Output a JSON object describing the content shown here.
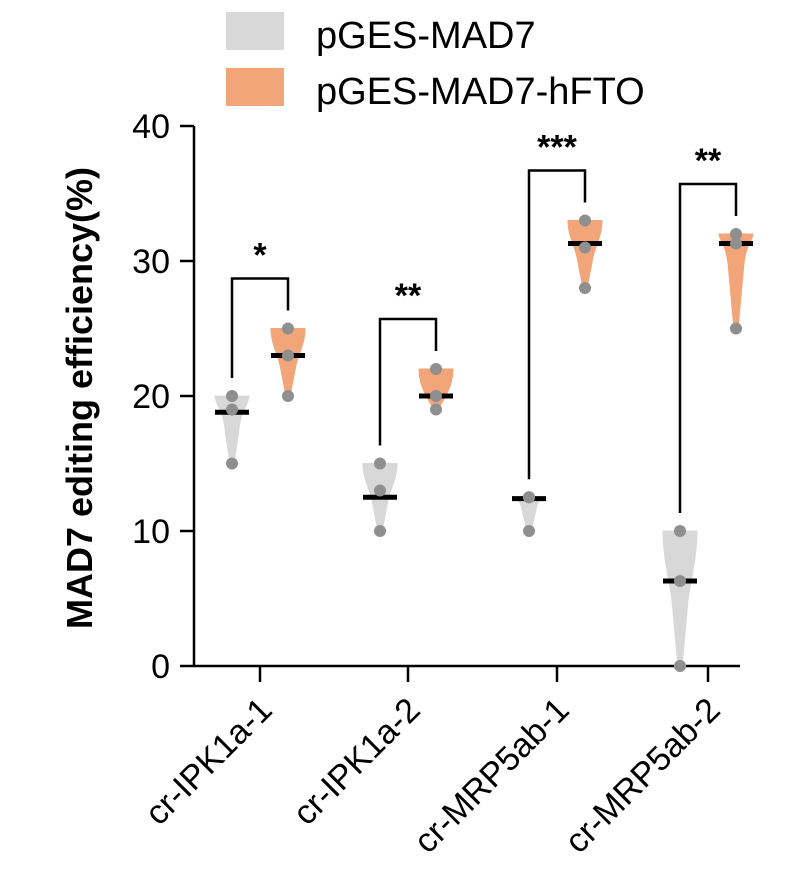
{
  "chart_data": {
    "type": "violin",
    "title": "",
    "xlabel": "",
    "ylabel": "MAD7 editing efficiency(%)",
    "ylim": [
      0,
      40
    ],
    "yticks": [
      0,
      10,
      20,
      30,
      40
    ],
    "categories": [
      "cr-IPK1a-1",
      "cr-IPK1a-2",
      "cr-MRP5ab-1",
      "cr-MRP5ab-2"
    ],
    "legend_position": "top",
    "series": [
      {
        "name": "pGES-MAD7",
        "color": "#d8d8d8",
        "points": [
          [
            15,
            19,
            20
          ],
          [
            10,
            13,
            15
          ],
          [
            10,
            12.5,
            12.5
          ],
          [
            0,
            6.3,
            10
          ]
        ],
        "median": [
          18.8,
          12.5,
          12.4,
          6.3
        ]
      },
      {
        "name": "pGES-MAD7-hFTO",
        "color": "#f3a57a",
        "points": [
          [
            20,
            23,
            25
          ],
          [
            19,
            20,
            22
          ],
          [
            28,
            31,
            33
          ],
          [
            25,
            31.3,
            32
          ]
        ],
        "median": [
          23,
          20,
          31.3,
          31.3
        ]
      }
    ],
    "significance": [
      "*",
      "**",
      "***",
      "**"
    ]
  }
}
